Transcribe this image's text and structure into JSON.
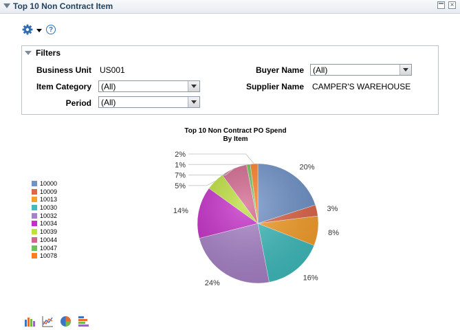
{
  "pagelet": {
    "title": "Top 10 Non Contract Item"
  },
  "toolbar": {
    "options_icon": "gear-icon",
    "help_icon": "help-icon",
    "help_glyph": "?"
  },
  "filters": {
    "title": "Filters",
    "business_unit_label": "Business Unit",
    "business_unit_value": "US001",
    "item_category_label": "Item Category",
    "item_category_value": "(All)",
    "period_label": "Period",
    "period_value": "(All)",
    "buyer_name_label": "Buyer Name",
    "buyer_name_value": "(All)",
    "supplier_name_label": "Supplier Name",
    "supplier_name_value": "CAMPER'S WAREHOUSE"
  },
  "chart_data": {
    "type": "pie",
    "title": "Top 10 Non Contract PO Spend",
    "subtitle": "By Item",
    "legend_position": "left",
    "categories": [
      "10000",
      "10009",
      "10013",
      "10030",
      "10032",
      "10034",
      "10039",
      "10044",
      "10047",
      "10078"
    ],
    "values": [
      20,
      3,
      8,
      16,
      24,
      14,
      5,
      7,
      1,
      2
    ],
    "labels": [
      "20%",
      "3%",
      "8%",
      "16%",
      "24%",
      "14%",
      "5%",
      "7%",
      "1%",
      "2%"
    ],
    "colors": [
      "#6f93c9",
      "#e0664a",
      "#f7a02a",
      "#3fbcbd",
      "#a882c8",
      "#c62dc9",
      "#bde03b",
      "#d3658d",
      "#6fc05a",
      "#ff7c1f"
    ]
  },
  "chart_types": [
    "bar-chart-icon",
    "line-chart-icon",
    "pie-chart-icon",
    "horizontal-bar-chart-icon"
  ]
}
